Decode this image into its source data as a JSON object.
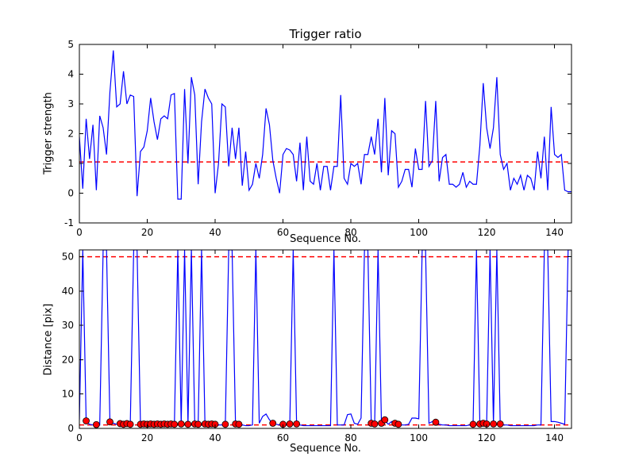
{
  "figure": {
    "background": "#ffffff"
  },
  "colors": {
    "data_line": "#0000ff",
    "threshold_line": "#ff0000",
    "marker_fill": "#ff0000",
    "marker_edge": "#000000",
    "axis": "#000000"
  },
  "chart_data": [
    {
      "type": "line",
      "title": "Trigger ratio",
      "xlabel": "Sequence No.",
      "ylabel": "Trigger strength",
      "xlim": [
        0,
        145
      ],
      "ylim": [
        -1,
        5
      ],
      "xticks": [
        0,
        20,
        40,
        60,
        80,
        100,
        120,
        140
      ],
      "yticks": [
        -1,
        0,
        1,
        2,
        3,
        4,
        5
      ],
      "grid": false,
      "legend": "none",
      "hlines": [
        {
          "y": 1.05,
          "color": "#ff0000",
          "style": "dashed"
        }
      ],
      "series": [
        {
          "name": "trigger-strength",
          "color": "#0000ff",
          "values": [
            1.9,
            0.15,
            2.5,
            1.15,
            2.3,
            0.1,
            2.6,
            2.2,
            1.3,
            3.4,
            4.8,
            2.9,
            3.0,
            4.1,
            3.0,
            3.3,
            3.25,
            -0.1,
            1.4,
            1.55,
            2.1,
            3.2,
            2.4,
            1.8,
            2.5,
            2.6,
            2.5,
            3.3,
            3.35,
            -0.2,
            -0.2,
            3.5,
            1.0,
            3.9,
            3.3,
            0.3,
            2.4,
            3.5,
            3.2,
            3.0,
            0.0,
            1.0,
            3.0,
            2.9,
            0.9,
            2.2,
            1.15,
            2.2,
            0.25,
            1.4,
            0.1,
            0.3,
            1.0,
            0.5,
            1.3,
            2.85,
            2.3,
            1.1,
            0.5,
            0.0,
            1.3,
            1.5,
            1.45,
            1.3,
            0.4,
            1.7,
            0.1,
            1.9,
            0.4,
            0.3,
            1.0,
            0.1,
            0.9,
            0.9,
            0.1,
            0.9,
            0.9,
            3.3,
            0.5,
            0.3,
            1.0,
            0.9,
            1.0,
            0.3,
            1.3,
            1.3,
            1.9,
            1.3,
            2.5,
            0.7,
            3.2,
            0.6,
            2.1,
            2.0,
            0.2,
            0.4,
            0.8,
            0.8,
            0.2,
            1.5,
            0.8,
            0.8,
            3.1,
            0.9,
            1.1,
            3.1,
            0.4,
            1.2,
            1.3,
            0.3,
            0.3,
            0.2,
            0.3,
            0.7,
            0.2,
            0.4,
            0.3,
            0.3,
            1.6,
            3.7,
            2.2,
            1.5,
            2.2,
            3.9,
            1.3,
            0.8,
            1.0,
            0.1,
            0.5,
            0.3,
            0.6,
            0.1,
            0.6,
            0.5,
            0.1,
            1.4,
            0.5,
            1.9,
            0.1,
            2.9,
            1.3,
            1.2,
            1.3,
            0.1,
            0.05,
            0.05
          ]
        }
      ]
    },
    {
      "type": "line",
      "title": "",
      "xlabel": "Sequence No.",
      "ylabel": "Distance [pix]",
      "xlim": [
        0,
        145
      ],
      "ylim": [
        0,
        52
      ],
      "xticks": [
        0,
        20,
        40,
        60,
        80,
        100,
        120,
        140
      ],
      "yticks": [
        0,
        10,
        20,
        30,
        40,
        50
      ],
      "grid": false,
      "legend": "none",
      "hlines": [
        {
          "y": 50,
          "color": "#ff0000",
          "style": "dashed"
        },
        {
          "y": 1,
          "color": "#ff0000",
          "style": "dashed"
        }
      ],
      "series": [
        {
          "name": "distance",
          "color": "#0000ff",
          "values": [
            2.5,
            52,
            2.0,
            1.2,
            1.0,
            1.2,
            1.0,
            52,
            52,
            2.0,
            1.5,
            1.2,
            1.5,
            1.2,
            1.5,
            1.3,
            52,
            52,
            1.2,
            1.3,
            1.2,
            1.3,
            1.2,
            1.3,
            1.2,
            1.3,
            1.2,
            1.3,
            1.2,
            52,
            1.3,
            52,
            1.2,
            52,
            1.3,
            1.2,
            52,
            1.3,
            1.2,
            1.3,
            1.2,
            1.0,
            1.0,
            1.2,
            52,
            52,
            1.3,
            1.2,
            1.0,
            0.8,
            0.8,
            1.0,
            52,
            1.5,
            3.5,
            4.2,
            2.5,
            1.5,
            1.2,
            1.0,
            1.2,
            1.0,
            1.3,
            52,
            1.3,
            1.0,
            0.8,
            0.8,
            0.8,
            0.8,
            0.8,
            0.8,
            0.8,
            0.8,
            0.8,
            52,
            1.0,
            1.0,
            1.0,
            4.0,
            4.2,
            1.5,
            1.2,
            3.0,
            52,
            52,
            1.5,
            1.3,
            52,
            1.5,
            2.5,
            1.2,
            2.0,
            1.5,
            1.2,
            1.0,
            1.0,
            1.2,
            3.0,
            3.0,
            2.8,
            52,
            52,
            1.5,
            2.0,
            1.8,
            1.2,
            1.0,
            1.0,
            0.8,
            0.8,
            0.8,
            0.8,
            0.8,
            0.8,
            1.0,
            1.2,
            52,
            1.3,
            1.5,
            1.3,
            52,
            1.3,
            52,
            1.3,
            1.0,
            1.0,
            0.8,
            0.8,
            0.8,
            0.8,
            0.8,
            0.8,
            0.8,
            0.8,
            1.0,
            1.0,
            52,
            52,
            2.0,
            2.0,
            1.8,
            1.5,
            1.2,
            52,
            52
          ]
        }
      ],
      "scatter": [
        {
          "name": "matched-points",
          "color": "#ff0000",
          "points": [
            [
              2,
              2.2
            ],
            [
              5,
              1.1
            ],
            [
              9,
              1.9
            ],
            [
              12,
              1.4
            ],
            [
              13,
              1.2
            ],
            [
              14,
              1.4
            ],
            [
              15,
              1.2
            ],
            [
              18,
              1.2
            ],
            [
              19,
              1.3
            ],
            [
              20,
              1.2
            ],
            [
              21,
              1.3
            ],
            [
              22,
              1.2
            ],
            [
              23,
              1.3
            ],
            [
              24,
              1.2
            ],
            [
              25,
              1.3
            ],
            [
              26,
              1.2
            ],
            [
              27,
              1.3
            ],
            [
              28,
              1.2
            ],
            [
              30,
              1.3
            ],
            [
              32,
              1.2
            ],
            [
              34,
              1.3
            ],
            [
              35,
              1.2
            ],
            [
              37,
              1.3
            ],
            [
              38,
              1.2
            ],
            [
              39,
              1.3
            ],
            [
              40,
              1.2
            ],
            [
              43,
              1.2
            ],
            [
              46,
              1.3
            ],
            [
              47,
              1.2
            ],
            [
              57,
              1.5
            ],
            [
              60,
              1.2
            ],
            [
              62,
              1.3
            ],
            [
              64,
              1.3
            ],
            [
              86,
              1.5
            ],
            [
              87,
              1.3
            ],
            [
              89,
              1.5
            ],
            [
              90,
              2.5
            ],
            [
              93,
              1.5
            ],
            [
              94,
              1.2
            ],
            [
              105,
              1.8
            ],
            [
              116,
              1.2
            ],
            [
              118,
              1.3
            ],
            [
              119,
              1.5
            ],
            [
              120,
              1.3
            ],
            [
              122,
              1.3
            ],
            [
              124,
              1.3
            ]
          ]
        }
      ]
    }
  ]
}
